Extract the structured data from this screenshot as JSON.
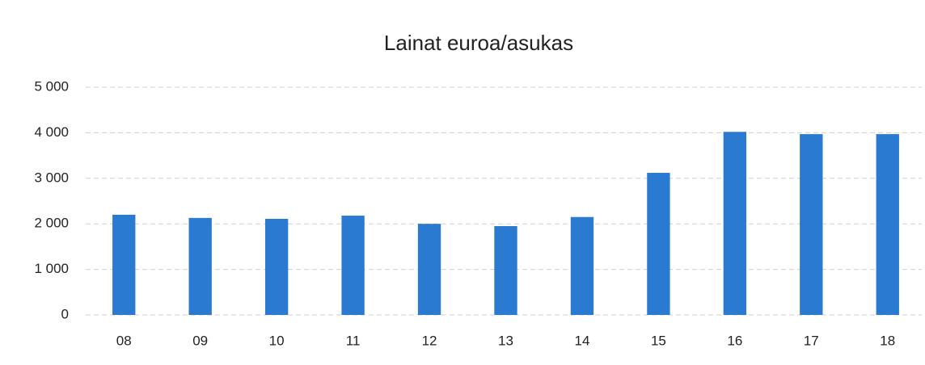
{
  "chart_data": {
    "type": "bar",
    "title": "Lainat euroa/asukas",
    "categories": [
      "08",
      "09",
      "10",
      "11",
      "12",
      "13",
      "14",
      "15",
      "16",
      "17",
      "18"
    ],
    "values": [
      2200,
      2130,
      2110,
      2180,
      2000,
      1950,
      2150,
      3120,
      4020,
      3970,
      3970
    ],
    "color": "#2a7ad2",
    "ylim": [
      0,
      5000
    ],
    "yticks": [
      0,
      {
        "value": 1000,
        "label": "1 000"
      },
      {
        "value": 2000,
        "label": "2 000"
      },
      {
        "value": 3000,
        "label": "3 000"
      },
      {
        "value": 4000,
        "label": "4 000"
      },
      {
        "value": 5000,
        "label": "5 000"
      }
    ],
    "grid": true
  }
}
